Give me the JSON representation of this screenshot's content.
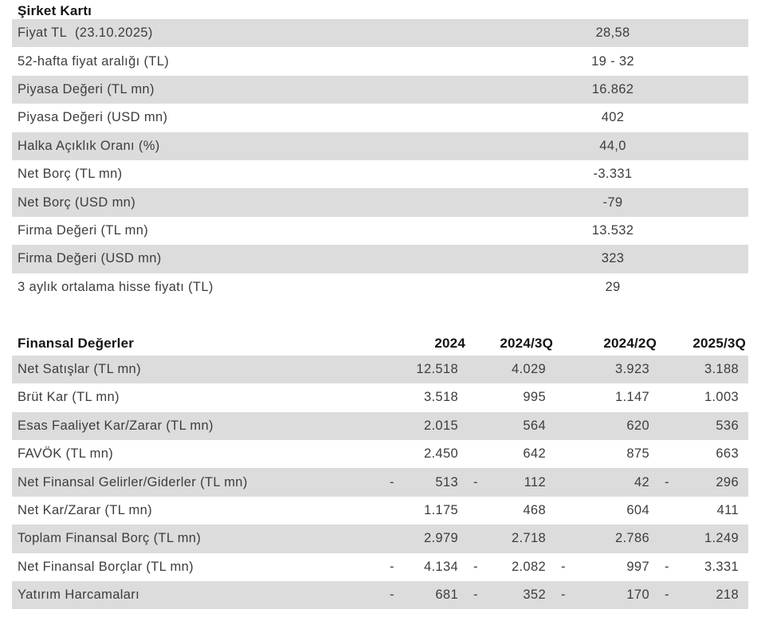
{
  "company_card": {
    "title": "Şirket Kartı",
    "rows": [
      {
        "label": "Fiyat TL  (23.10.2025)",
        "value": "28,58"
      },
      {
        "label": "52-hafta fiyat aralığı (TL)",
        "value": "19 - 32"
      },
      {
        "label": "Piyasa Değeri (TL mn)",
        "value": "16.862"
      },
      {
        "label": "Piyasa Değeri (USD mn)",
        "value": "402"
      },
      {
        "label": "Halka Açıklık Oranı (%)",
        "value": "44,0"
      },
      {
        "label": "Net Borç (TL mn)",
        "value": "-3.331"
      },
      {
        "label": "Net Borç (USD mn)",
        "value": "-79"
      },
      {
        "label": "Firma Değeri (TL mn)",
        "value": "13.532"
      },
      {
        "label": "Firma Değeri (USD mn)",
        "value": "323"
      },
      {
        "label": "3 aylık ortalama hisse fiyatı (TL)",
        "value": "29"
      }
    ]
  },
  "financials": {
    "title": "Finansal Değerler",
    "columns": [
      "2024",
      "2024/3Q",
      "2024/2Q",
      "2025/3Q"
    ],
    "rows": [
      {
        "label": "Net Satışlar (TL mn)",
        "values": [
          "12.518",
          "4.029",
          "3.923",
          "3.188"
        ]
      },
      {
        "label": "Brüt Kar (TL mn)",
        "values": [
          "3.518",
          "995",
          "1.147",
          "1.003"
        ]
      },
      {
        "label": "Esas Faaliyet Kar/Zarar (TL mn)",
        "values": [
          "2.015",
          "564",
          "620",
          "536"
        ]
      },
      {
        "label": "FAVÖK (TL mn)",
        "values": [
          "2.450",
          "642",
          "875",
          "663"
        ]
      },
      {
        "label": "Net Finansal Gelirler/Giderler (TL mn)",
        "values": [
          "-513",
          "-112",
          "42",
          "-296"
        ]
      },
      {
        "label": "Net Kar/Zarar (TL mn)",
        "values": [
          "1.175",
          "468",
          "604",
          "411"
        ]
      },
      {
        "label": "Toplam Finansal Borç (TL mn)",
        "values": [
          "2.979",
          "2.718",
          "2.786",
          "1.249"
        ]
      },
      {
        "label": "Net Finansal Borçlar (TL mn)",
        "values": [
          "-4.134",
          "-2.082",
          "-997",
          "-3.331"
        ]
      },
      {
        "label": "Yatırım Harcamaları",
        "values": [
          "-681",
          "-352",
          "-170",
          "-218"
        ]
      }
    ]
  },
  "colors": {
    "stripe": "#dcdcdc",
    "body_text": "#3d3d3d",
    "heading_text": "#141414",
    "background": "#ffffff"
  }
}
